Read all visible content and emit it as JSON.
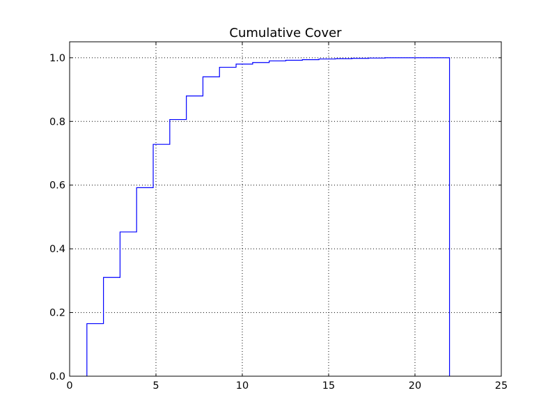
{
  "chart_data": {
    "type": "line",
    "style": "step-histogram",
    "title": "Cumulative Cover",
    "xlabel": "",
    "ylabel": "",
    "xlim": [
      0,
      25
    ],
    "ylim": [
      0.0,
      1.05
    ],
    "x_ticks": [
      0,
      5,
      10,
      15,
      20,
      25
    ],
    "x_tick_labels": [
      "0",
      "5",
      "10",
      "15",
      "20",
      "25"
    ],
    "y_ticks": [
      0.0,
      0.2,
      0.4,
      0.6,
      0.8,
      1.0
    ],
    "y_tick_labels": [
      "0.0",
      "0.2",
      "0.4",
      "0.6",
      "0.8",
      "1.0"
    ],
    "grid": true,
    "line_color": "#0000ff",
    "series": [
      {
        "bin_edges": [
          1.0,
          1.96,
          2.92,
          3.88,
          4.84,
          5.8,
          6.76,
          7.72,
          8.68,
          9.64,
          10.6,
          11.56,
          12.52,
          13.48,
          14.44,
          15.4,
          16.36,
          17.32,
          18.28,
          19.24,
          20.2,
          21.16,
          22.0
        ],
        "values": [
          0.165,
          0.31,
          0.453,
          0.592,
          0.728,
          0.806,
          0.88,
          0.94,
          0.97,
          0.98,
          0.985,
          0.99,
          0.992,
          0.994,
          0.996,
          0.997,
          0.998,
          0.999,
          1.0,
          1.0,
          1.0,
          1.0
        ]
      }
    ]
  }
}
